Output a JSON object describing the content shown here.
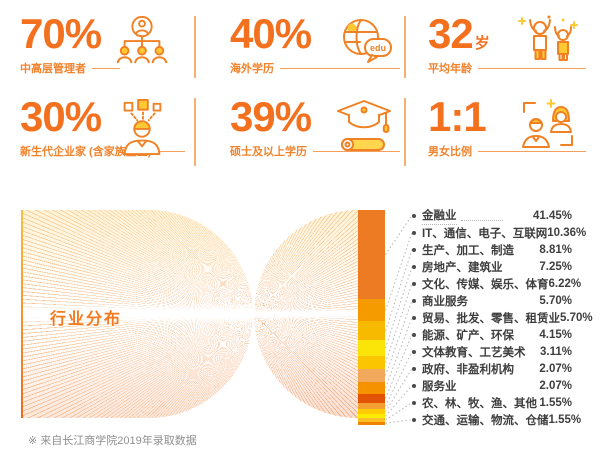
{
  "palette": {
    "accent_orange": "#F3701E",
    "label_orange": "#F2832D",
    "rule_orange": "#F5A05A",
    "divider_orange": "#F8B071",
    "text_dark": "#3E3E3E",
    "leader_gray": "#B5B5B5",
    "footnote_gray": "#909090",
    "icon_yellow": "#FFC933",
    "icon_stroke": "#F08124"
  },
  "stats": [
    {
      "value": "70%",
      "unit": "",
      "label": "中高层管理者",
      "icon": "org-chart-icon"
    },
    {
      "value": "40%",
      "unit": "",
      "label": "海外学历",
      "icon": "globe-edu-icon"
    },
    {
      "value": "32",
      "unit": "岁",
      "label": "平均年龄",
      "icon": "cheering-people-icon"
    },
    {
      "value": "30%",
      "unit": "",
      "label": "新生代企业家 (含家族企业)",
      "icon": "entrepreneur-icon"
    },
    {
      "value": "39%",
      "unit": "",
      "label": "硕士及以上学历",
      "icon": "graduation-icon"
    },
    {
      "value": "1:1",
      "unit": "",
      "label": "男女比例",
      "icon": "gender-ratio-icon"
    }
  ],
  "chart": {
    "title": "行业分布",
    "footnote": "※ 来自长江商学院2019年录取数据"
  },
  "industry_list": {
    "items": [
      {
        "label": "金融业",
        "value": "41.45%"
      },
      {
        "label": "IT、通信、电子、互联网",
        "value": "10.36%"
      },
      {
        "label": "生产、加工、制造",
        "value": "8.81%"
      },
      {
        "label": "房地产、建筑业",
        "value": "7.25%"
      },
      {
        "label": "文化、传媒、娱乐、体育",
        "value": "6.22%"
      },
      {
        "label": "商业服务",
        "value": "5.70%"
      },
      {
        "label": "贸易、批发、零售、租赁业",
        "value": "5.70%"
      },
      {
        "label": "能源、矿产、环保",
        "value": "4.15%"
      },
      {
        "label": "文体教育、工艺美术",
        "value": "3.11%"
      },
      {
        "label": "政府、非盈利机构",
        "value": "2.07%"
      },
      {
        "label": "服务业",
        "value": "2.07%"
      },
      {
        "label": "农、林、牧、渔、其他",
        "value": "1.55%"
      },
      {
        "label": "交通、运输、物流、仓储",
        "value": "1.55%"
      }
    ]
  },
  "chart_data": {
    "type": "bar",
    "title": "行业分布",
    "orientation": "vertical-stacked",
    "unit": "%",
    "legend_position": "right",
    "categories": [
      "金融业",
      "IT、通信、电子、互联网",
      "生产、加工、制造",
      "房地产、建筑业",
      "文化、传媒、娱乐、体育",
      "商业服务",
      "贸易、批发、零售、租赁业",
      "能源、矿产、环保",
      "文体教育、工艺美术",
      "政府、非盈利机构",
      "服务业",
      "农、林、牧、渔、其他",
      "交通、运输、物流、仓储"
    ],
    "values": [
      41.45,
      10.36,
      8.81,
      7.25,
      6.22,
      5.7,
      5.7,
      4.15,
      3.11,
      2.07,
      2.07,
      1.55,
      1.55
    ],
    "colors": [
      "#ED7B23",
      "#F59B00",
      "#F8BA00",
      "#FBE408",
      "#FBC600",
      "#F2A95B",
      "#F49200",
      "#E25303",
      "#F5A032",
      "#FFCC00",
      "#FCEC00",
      "#FBBE23",
      "#F08400"
    ],
    "source_note": "※ 来自长江商学院2019年录取数据"
  }
}
